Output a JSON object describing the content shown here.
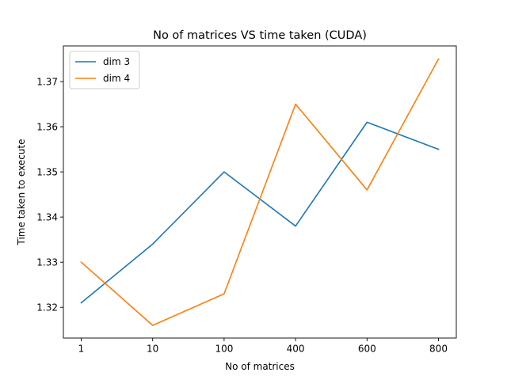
{
  "chart_data": {
    "type": "line",
    "title": "No of matrices VS time taken (CUDA)",
    "xlabel": "No of matrices",
    "ylabel": "Time taken to execute",
    "categories": [
      "1",
      "10",
      "100",
      "400",
      "600",
      "800"
    ],
    "series": [
      {
        "name": "dim 3",
        "color": "#1f77b4",
        "values": [
          1.321,
          1.334,
          1.35,
          1.338,
          1.361,
          1.355
        ]
      },
      {
        "name": "dim 4",
        "color": "#ff7f0e",
        "values": [
          1.33,
          1.316,
          1.323,
          1.365,
          1.346,
          1.375
        ]
      }
    ],
    "ylim": [
      1.3132,
      1.3779
    ],
    "yticks": [
      "1.32",
      "1.33",
      "1.34",
      "1.35",
      "1.36",
      "1.37"
    ],
    "grid": false,
    "legend": "upper-left"
  }
}
